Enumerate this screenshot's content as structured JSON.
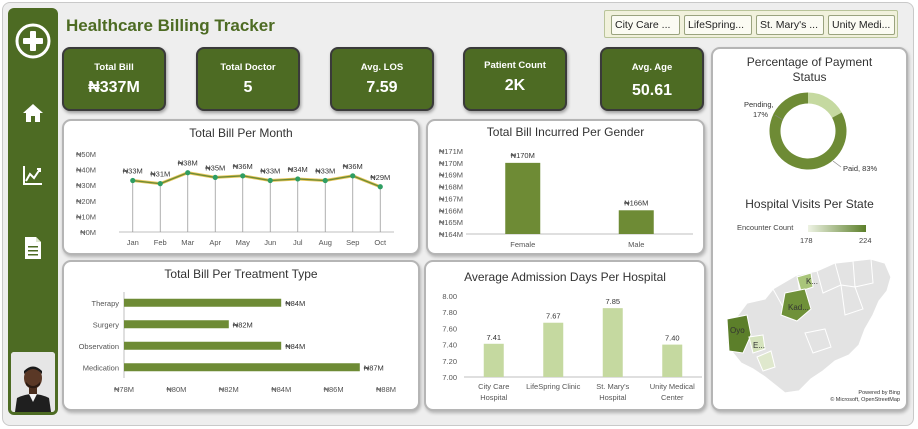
{
  "header": {
    "title": "Healthcare Billing Tracker"
  },
  "slicer": {
    "items": [
      "City Care ...",
      "LifeSpring...",
      "St. Mary's ...",
      "Unity Medi..."
    ]
  },
  "kpis": [
    {
      "label": "Total Bill",
      "value": "₦337M"
    },
    {
      "label": "Total Doctor",
      "value": "5"
    },
    {
      "label": "Avg. LOS",
      "value": "7.59"
    },
    {
      "label": "Patient Count",
      "value": "2K"
    },
    {
      "label": "Avg. Age",
      "value": "50.61"
    }
  ],
  "sidebar": {
    "icons": [
      "add-icon",
      "home-icon",
      "chart-icon",
      "document-icon"
    ]
  },
  "colors": {
    "primary": "#4d6b23",
    "bar": "#6e8b35",
    "light_bar": "#c5d9a0",
    "line": "#6e8b35",
    "marker": "#2f9e63"
  },
  "chart_data": [
    {
      "type": "line",
      "title": "Total Bill Per Month",
      "categories": [
        "Jan",
        "Feb",
        "Mar",
        "Apr",
        "May",
        "Jun",
        "Jul",
        "Aug",
        "Sep",
        "Oct"
      ],
      "values": [
        33,
        31,
        38,
        35,
        36,
        33,
        34,
        33,
        36,
        29
      ],
      "data_labels": [
        "₦33M",
        "₦31M",
        "₦38M",
        "₦35M",
        "₦36M",
        "₦33M",
        "₦34M",
        "₦33M",
        "₦36M",
        "₦29M"
      ],
      "yticks": [
        "₦0M",
        "₦10M",
        "₦20M",
        "₦30M",
        "₦40M",
        "₦50M"
      ],
      "ylim": [
        0,
        50
      ]
    },
    {
      "type": "bar",
      "title": "Total Bill Incurred Per Gender",
      "categories": [
        "Female",
        "Male"
      ],
      "values": [
        170,
        166
      ],
      "data_labels": [
        "₦170M",
        "₦166M"
      ],
      "yticks": [
        "₦164M",
        "₦165M",
        "₦166M",
        "₦167M",
        "₦168M",
        "₦169M",
        "₦170M",
        "₦171M"
      ],
      "ylim": [
        164,
        171
      ]
    },
    {
      "type": "bar",
      "orientation": "horizontal",
      "title": "Total Bill Per Treatment Type",
      "categories": [
        "Therapy",
        "Surgery",
        "Observation",
        "Medication"
      ],
      "values": [
        84,
        82,
        84,
        87
      ],
      "data_labels": [
        "₦84M",
        "₦82M",
        "₦84M",
        "₦87M"
      ],
      "xticks": [
        "₦78M",
        "₦80M",
        "₦82M",
        "₦84M",
        "₦86M",
        "₦88M"
      ],
      "xlim": [
        78,
        88
      ]
    },
    {
      "type": "bar",
      "title": "Average Admission Days Per Hospital",
      "categories": [
        [
          "City Care",
          "Hospital"
        ],
        [
          "LifeSpring Clinic"
        ],
        [
          "St. Mary's",
          "Hospital"
        ],
        [
          "Unity Medical",
          "Center"
        ]
      ],
      "values": [
        7.41,
        7.67,
        7.85,
        7.4
      ],
      "data_labels": [
        "7.41",
        "7.67",
        "7.85",
        "7.40"
      ],
      "yticks": [
        "7.00",
        "7.20",
        "7.40",
        "7.60",
        "7.80",
        "8.00"
      ],
      "ylim": [
        7.0,
        8.0
      ]
    },
    {
      "type": "pie",
      "title": "Percentage of Payment Status",
      "slices": [
        {
          "name": "Pending",
          "value": 17,
          "label": [
            "Pending,",
            "17%"
          ]
        },
        {
          "name": "Paid",
          "value": 83,
          "label": [
            "Paid, 83%"
          ]
        }
      ]
    }
  ],
  "map": {
    "title": "Hospital Visits Per State",
    "legend_title": "Encounter Count",
    "legend_min": "178",
    "legend_max": "224",
    "state_labels": [
      "K...",
      "Kad...",
      "Oyo",
      "E..."
    ],
    "credit_line1": "Powered by Bing",
    "credit_line2": "© Microsoft, OpenStreetMap"
  }
}
